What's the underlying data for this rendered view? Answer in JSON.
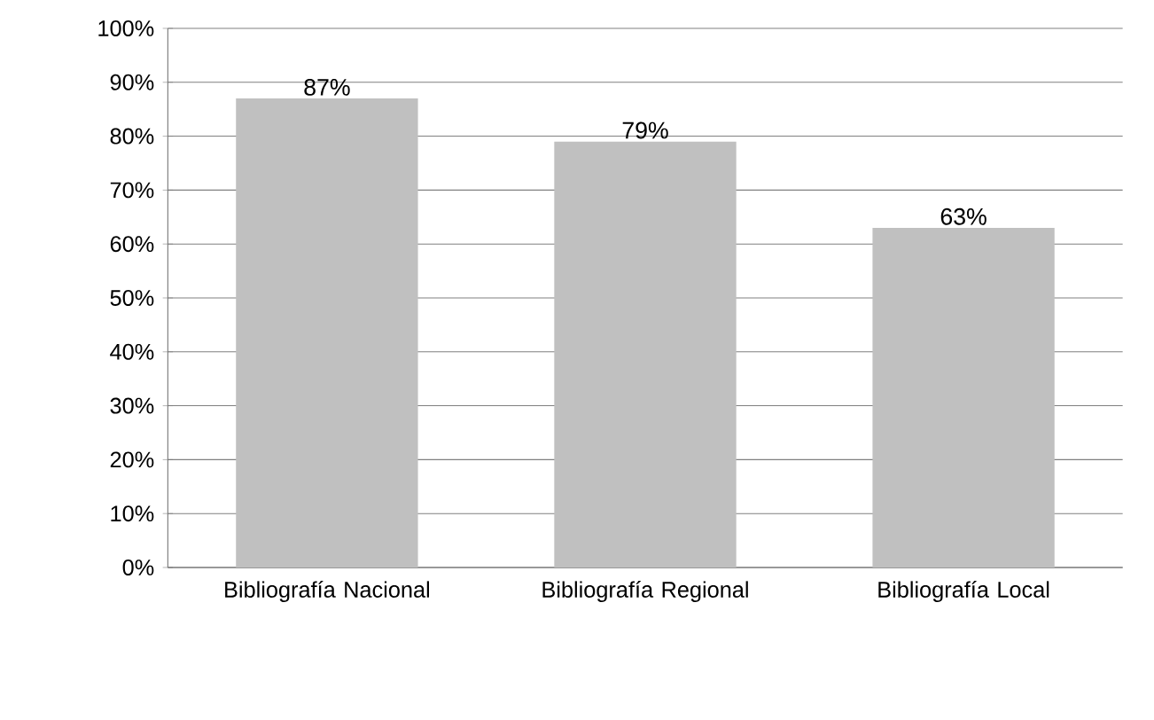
{
  "chart_data": {
    "type": "bar",
    "categories": [
      "Bibliografía Nacional",
      "Bibliografía Regional",
      "Bibliografía Local"
    ],
    "values": [
      87,
      79,
      63
    ],
    "value_labels": [
      "87%",
      "79%",
      "63%"
    ],
    "color": "#c0c0c0",
    "ylim": [
      0,
      100
    ],
    "yticks": [
      {
        "value": 0,
        "label": "0%"
      },
      {
        "value": 10,
        "label": "10%"
      },
      {
        "value": 20,
        "label": "20%"
      },
      {
        "value": 30,
        "label": "30%"
      },
      {
        "value": 40,
        "label": "40%"
      },
      {
        "value": 50,
        "label": "50%"
      },
      {
        "value": 60,
        "label": "60%"
      },
      {
        "value": 70,
        "label": "70%"
      },
      {
        "value": 80,
        "label": "80%"
      },
      {
        "value": 90,
        "label": "90%"
      },
      {
        "value": 100,
        "label": "100%"
      }
    ],
    "grid": "y"
  }
}
